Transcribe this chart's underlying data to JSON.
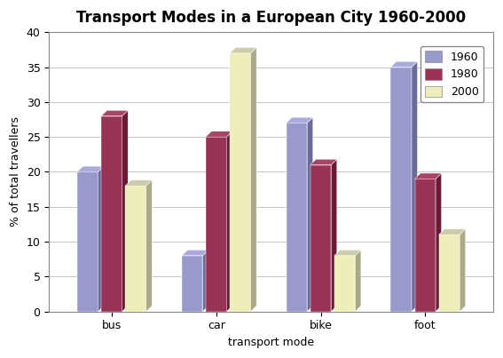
{
  "title": "Transport Modes in a European City 1960-2000",
  "xlabel": "transport mode",
  "ylabel": "% of total travellers",
  "categories": [
    "bus",
    "car",
    "bike",
    "foot"
  ],
  "years": [
    "1960",
    "1980",
    "2000"
  ],
  "values": {
    "1960": [
      20,
      8,
      27,
      35
    ],
    "1980": [
      28,
      25,
      21,
      19
    ],
    "2000": [
      18,
      37,
      8,
      11
    ]
  },
  "bar_colors_front": {
    "1960": "#9999CC",
    "1980": "#993355",
    "2000": "#EEEEBB"
  },
  "bar_colors_side": {
    "1960": "#6B6B9B",
    "1980": "#6B1A33",
    "2000": "#AAAA88"
  },
  "bar_colors_top": {
    "1960": "#AAAADD",
    "1980": "#AA4466",
    "2000": "#CCCCAA"
  },
  "ylim": [
    0,
    40
  ],
  "yticks": [
    0,
    5,
    10,
    15,
    20,
    25,
    30,
    35,
    40
  ],
  "legend_labels": [
    "1960",
    "1980",
    "2000"
  ],
  "bar_width": 0.2,
  "depth": 0.06,
  "background_color": "#FFFFFF",
  "plot_bg_color": "#FFFFFF",
  "grid_color": "#BBBBBB",
  "title_fontsize": 12,
  "axis_label_fontsize": 9,
  "tick_fontsize": 9,
  "legend_fontsize": 9
}
